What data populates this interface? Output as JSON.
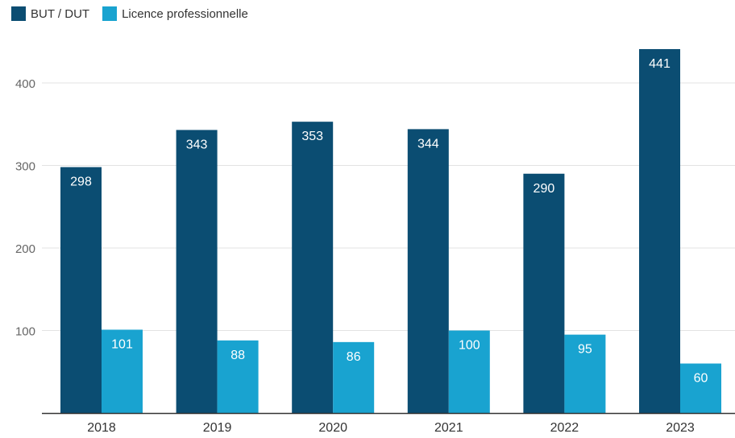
{
  "chart_data": {
    "type": "bar",
    "categories": [
      "2018",
      "2019",
      "2020",
      "2021",
      "2022",
      "2023"
    ],
    "series": [
      {
        "name": "BUT / DUT",
        "color": "#0b4d72",
        "values": [
          298,
          343,
          353,
          344,
          290,
          441
        ]
      },
      {
        "name": "Licence professionnelle",
        "color": "#19a3d0",
        "values": [
          101,
          88,
          86,
          100,
          95,
          60
        ]
      }
    ],
    "yticks": [
      "100",
      "200",
      "300",
      "400"
    ],
    "ylim": [
      0,
      460
    ],
    "grid": true,
    "legend_position": "top-left",
    "data_labels": true,
    "title": "",
    "xlabel": "",
    "ylabel": ""
  }
}
